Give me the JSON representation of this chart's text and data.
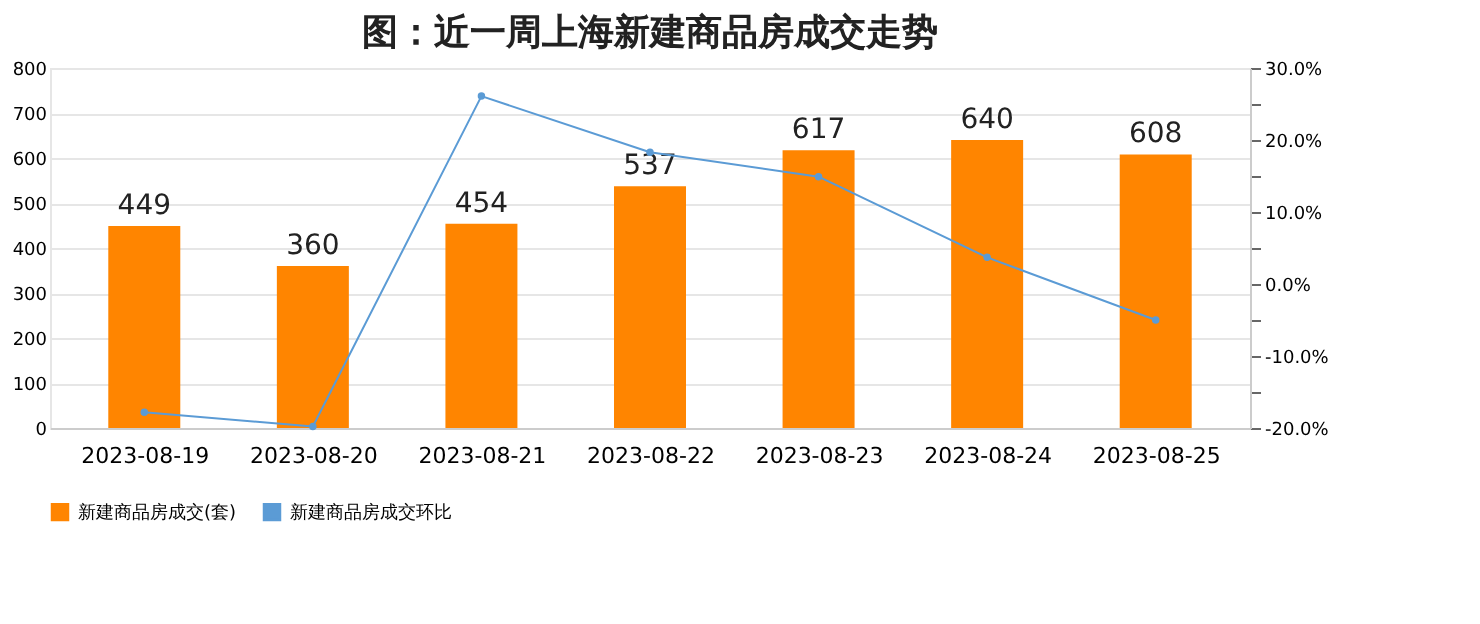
{
  "chart_data": {
    "type": "bar",
    "title": "图：近一周上海新建商品房成交走势",
    "categories": [
      "2023-08-19",
      "2023-08-20",
      "2023-08-21",
      "2023-08-22",
      "2023-08-23",
      "2023-08-24",
      "2023-08-25"
    ],
    "series": [
      {
        "name": "新建商品房成交(套)",
        "color": "#ff8500",
        "values": [
          449,
          360,
          454,
          537,
          617,
          640,
          608
        ],
        "value_labels": [
          "449",
          "360",
          "454",
          "537",
          "617",
          "640",
          "608"
        ]
      },
      {
        "name": "新建商品房成交环比",
        "type": "line",
        "axis": "y2",
        "color": "#5b9bd5",
        "marker": "circle",
        "values": [
          -17.8,
          -19.8,
          26.1,
          18.3,
          14.9,
          3.7,
          -5.0
        ]
      }
    ],
    "ylim": [
      0,
      800
    ],
    "yticks": [
      0,
      100,
      200,
      300,
      400,
      500,
      600,
      700,
      800
    ],
    "y2lim": [
      -20,
      30
    ],
    "y2ticks": [
      {
        "value": -20,
        "label": "-20.0%"
      },
      {
        "value": -15,
        "label": null
      },
      {
        "value": -10,
        "label": "-10.0%"
      },
      {
        "value": -5,
        "label": null
      },
      {
        "value": 0,
        "label": "0.0%"
      },
      {
        "value": 5,
        "label": null
      },
      {
        "value": 10,
        "label": "10.0%"
      },
      {
        "value": 15,
        "label": null
      },
      {
        "value": 20,
        "label": "20.0%"
      },
      {
        "value": 25,
        "label": null
      },
      {
        "value": 30,
        "label": "30.0%"
      }
    ],
    "grid": "y",
    "legend": "bottom"
  }
}
